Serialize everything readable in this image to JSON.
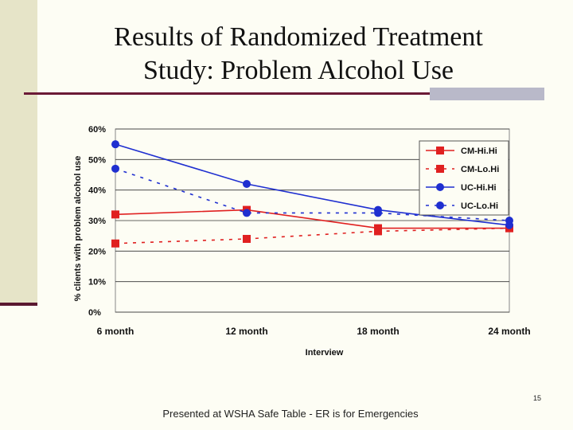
{
  "slide": {
    "title_line1": "Results of Randomized Treatment",
    "title_line2": "Study: Problem Alcohol Use",
    "footer": "Presented at WSHA Safe Table - ER is for Emergencies",
    "page_number": "15"
  },
  "chart_data": {
    "type": "line",
    "title": "",
    "xlabel": "Interview",
    "ylabel": "% clients with problem alcohol use",
    "categories": [
      "6 month",
      "12 month",
      "18 month",
      "24 month"
    ],
    "y_ticks": [
      "0%",
      "10%",
      "20%",
      "30%",
      "40%",
      "50%",
      "60%"
    ],
    "ylim": [
      0,
      60
    ],
    "grid": true,
    "legend_position": "top-right",
    "series": [
      {
        "name": "CM-Hi.Hi",
        "values": [
          32,
          33.5,
          27.5,
          27.5
        ],
        "color": "#e02020",
        "dashed": false,
        "marker": "square"
      },
      {
        "name": "CM-Lo.Hi",
        "values": [
          22.5,
          24,
          26.5,
          27.5
        ],
        "color": "#e02020",
        "dashed": true,
        "marker": "square"
      },
      {
        "name": "UC-Hi.Hi",
        "values": [
          55,
          42,
          33.5,
          28.5
        ],
        "color": "#1f2fd0",
        "dashed": false,
        "marker": "circle"
      },
      {
        "name": "UC-Lo.Hi",
        "values": [
          47,
          32.5,
          32.5,
          30
        ],
        "color": "#1f2fd0",
        "dashed": true,
        "marker": "circle"
      }
    ]
  }
}
